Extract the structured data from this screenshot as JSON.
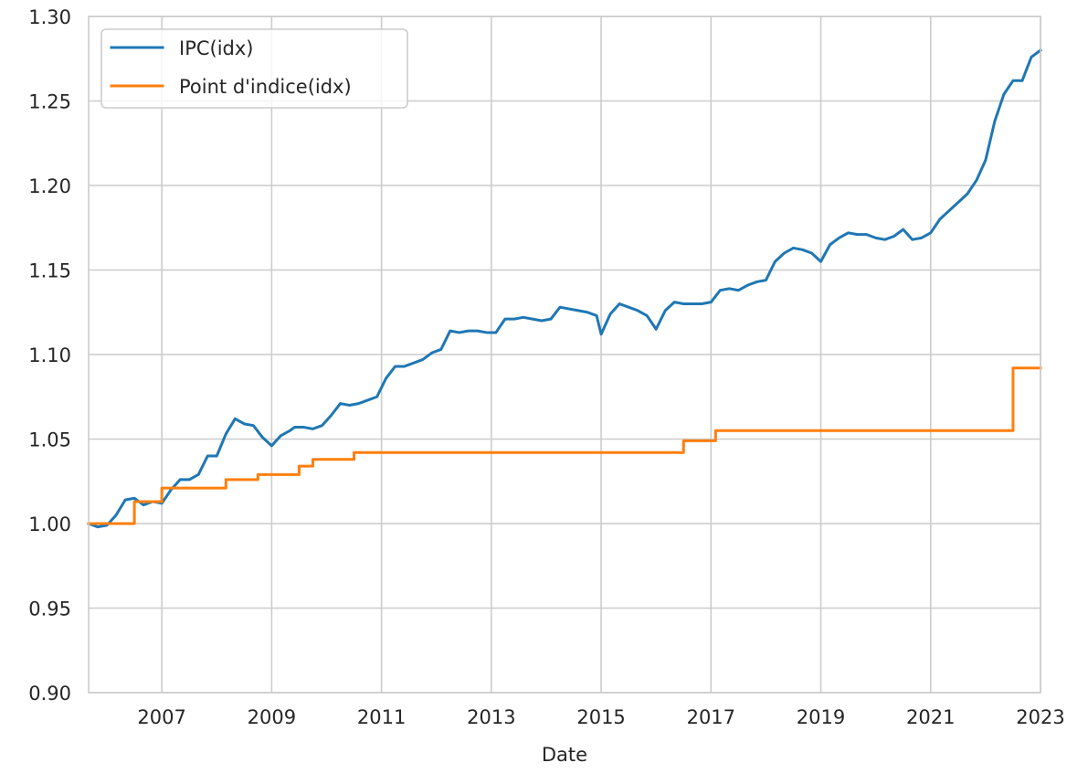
{
  "chart_data": {
    "type": "line",
    "title": "",
    "xlabel": "Date",
    "ylabel": "",
    "xlim": [
      "2005-09-01",
      "2023-01-01"
    ],
    "ylim": [
      0.9,
      1.3
    ],
    "x_ticks": [
      "2007",
      "2009",
      "2011",
      "2013",
      "2015",
      "2017",
      "2019",
      "2021",
      "2023"
    ],
    "y_ticks": [
      "0.90",
      "0.95",
      "1.00",
      "1.05",
      "1.10",
      "1.15",
      "1.20",
      "1.25",
      "1.30"
    ],
    "grid": true,
    "legend_position": "top-left",
    "series": [
      {
        "name": "IPC(idx)",
        "color": "#1f77b4",
        "kind": "line",
        "points": [
          [
            "2005-09-01",
            1.0
          ],
          [
            "2005-11-01",
            0.998
          ],
          [
            "2006-01-01",
            0.999
          ],
          [
            "2006-03-01",
            1.005
          ],
          [
            "2006-05-01",
            1.014
          ],
          [
            "2006-07-01",
            1.015
          ],
          [
            "2006-09-01",
            1.011
          ],
          [
            "2006-11-01",
            1.013
          ],
          [
            "2007-01-01",
            1.012
          ],
          [
            "2007-03-01",
            1.02
          ],
          [
            "2007-05-01",
            1.026
          ],
          [
            "2007-07-01",
            1.026
          ],
          [
            "2007-09-01",
            1.029
          ],
          [
            "2007-11-01",
            1.04
          ],
          [
            "2008-01-01",
            1.04
          ],
          [
            "2008-03-01",
            1.053
          ],
          [
            "2008-05-01",
            1.062
          ],
          [
            "2008-07-01",
            1.059
          ],
          [
            "2008-09-01",
            1.058
          ],
          [
            "2008-11-01",
            1.051
          ],
          [
            "2009-01-01",
            1.046
          ],
          [
            "2009-03-01",
            1.052
          ],
          [
            "2009-05-01",
            1.055
          ],
          [
            "2009-06-01",
            1.057
          ],
          [
            "2009-08-01",
            1.057
          ],
          [
            "2009-10-01",
            1.056
          ],
          [
            "2009-12-01",
            1.058
          ],
          [
            "2010-02-01",
            1.064
          ],
          [
            "2010-04-01",
            1.071
          ],
          [
            "2010-06-01",
            1.07
          ],
          [
            "2010-08-01",
            1.071
          ],
          [
            "2010-10-01",
            1.073
          ],
          [
            "2010-12-01",
            1.075
          ],
          [
            "2011-02-01",
            1.086
          ],
          [
            "2011-04-01",
            1.093
          ],
          [
            "2011-06-01",
            1.093
          ],
          [
            "2011-08-01",
            1.095
          ],
          [
            "2011-10-01",
            1.097
          ],
          [
            "2011-12-01",
            1.101
          ],
          [
            "2012-02-01",
            1.103
          ],
          [
            "2012-04-01",
            1.114
          ],
          [
            "2012-06-01",
            1.113
          ],
          [
            "2012-08-01",
            1.114
          ],
          [
            "2012-10-01",
            1.114
          ],
          [
            "2012-12-01",
            1.113
          ],
          [
            "2013-02-01",
            1.113
          ],
          [
            "2013-04-01",
            1.121
          ],
          [
            "2013-06-01",
            1.121
          ],
          [
            "2013-08-01",
            1.122
          ],
          [
            "2013-10-01",
            1.121
          ],
          [
            "2013-12-01",
            1.12
          ],
          [
            "2014-02-01",
            1.121
          ],
          [
            "2014-04-01",
            1.128
          ],
          [
            "2014-06-01",
            1.127
          ],
          [
            "2014-08-01",
            1.126
          ],
          [
            "2014-10-01",
            1.125
          ],
          [
            "2014-12-01",
            1.123
          ],
          [
            "2015-01-01",
            1.112
          ],
          [
            "2015-03-01",
            1.124
          ],
          [
            "2015-05-01",
            1.13
          ],
          [
            "2015-07-01",
            1.128
          ],
          [
            "2015-09-01",
            1.126
          ],
          [
            "2015-11-01",
            1.123
          ],
          [
            "2016-01-01",
            1.115
          ],
          [
            "2016-03-01",
            1.126
          ],
          [
            "2016-05-01",
            1.131
          ],
          [
            "2016-07-01",
            1.13
          ],
          [
            "2016-09-01",
            1.13
          ],
          [
            "2016-11-01",
            1.13
          ],
          [
            "2017-01-01",
            1.131
          ],
          [
            "2017-03-01",
            1.138
          ],
          [
            "2017-05-01",
            1.139
          ],
          [
            "2017-07-01",
            1.138
          ],
          [
            "2017-09-01",
            1.141
          ],
          [
            "2017-11-01",
            1.143
          ],
          [
            "2018-01-01",
            1.144
          ],
          [
            "2018-03-01",
            1.155
          ],
          [
            "2018-05-01",
            1.16
          ],
          [
            "2018-07-01",
            1.163
          ],
          [
            "2018-09-01",
            1.162
          ],
          [
            "2018-11-01",
            1.16
          ],
          [
            "2019-01-01",
            1.155
          ],
          [
            "2019-03-01",
            1.165
          ],
          [
            "2019-05-01",
            1.169
          ],
          [
            "2019-07-01",
            1.172
          ],
          [
            "2019-09-01",
            1.171
          ],
          [
            "2019-11-01",
            1.171
          ],
          [
            "2020-01-01",
            1.169
          ],
          [
            "2020-03-01",
            1.168
          ],
          [
            "2020-05-01",
            1.17
          ],
          [
            "2020-07-01",
            1.174
          ],
          [
            "2020-09-01",
            1.168
          ],
          [
            "2020-11-01",
            1.169
          ],
          [
            "2021-01-01",
            1.172
          ],
          [
            "2021-03-01",
            1.18
          ],
          [
            "2021-05-01",
            1.185
          ],
          [
            "2021-07-01",
            1.19
          ],
          [
            "2021-09-01",
            1.195
          ],
          [
            "2021-11-01",
            1.203
          ],
          [
            "2022-01-01",
            1.215
          ],
          [
            "2022-03-01",
            1.238
          ],
          [
            "2022-05-01",
            1.254
          ],
          [
            "2022-07-01",
            1.262
          ],
          [
            "2022-09-01",
            1.262
          ],
          [
            "2022-11-01",
            1.276
          ],
          [
            "2023-01-01",
            1.28
          ]
        ]
      },
      {
        "name": "Point d'indice(idx)",
        "color": "#ff7f0e",
        "kind": "step",
        "points": [
          [
            "2005-09-01",
            1.0
          ],
          [
            "2006-07-01",
            1.0
          ],
          [
            "2006-07-01",
            1.013
          ],
          [
            "2007-01-01",
            1.013
          ],
          [
            "2007-01-01",
            1.021
          ],
          [
            "2008-03-01",
            1.021
          ],
          [
            "2008-03-01",
            1.026
          ],
          [
            "2008-10-01",
            1.026
          ],
          [
            "2008-10-01",
            1.029
          ],
          [
            "2009-07-01",
            1.029
          ],
          [
            "2009-07-01",
            1.034
          ],
          [
            "2009-10-01",
            1.034
          ],
          [
            "2009-10-01",
            1.038
          ],
          [
            "2010-07-01",
            1.038
          ],
          [
            "2010-07-01",
            1.042
          ],
          [
            "2016-07-01",
            1.042
          ],
          [
            "2016-07-01",
            1.049
          ],
          [
            "2017-02-01",
            1.049
          ],
          [
            "2017-02-01",
            1.055
          ],
          [
            "2022-07-01",
            1.055
          ],
          [
            "2022-07-01",
            1.092
          ],
          [
            "2023-01-01",
            1.092
          ]
        ]
      }
    ]
  }
}
